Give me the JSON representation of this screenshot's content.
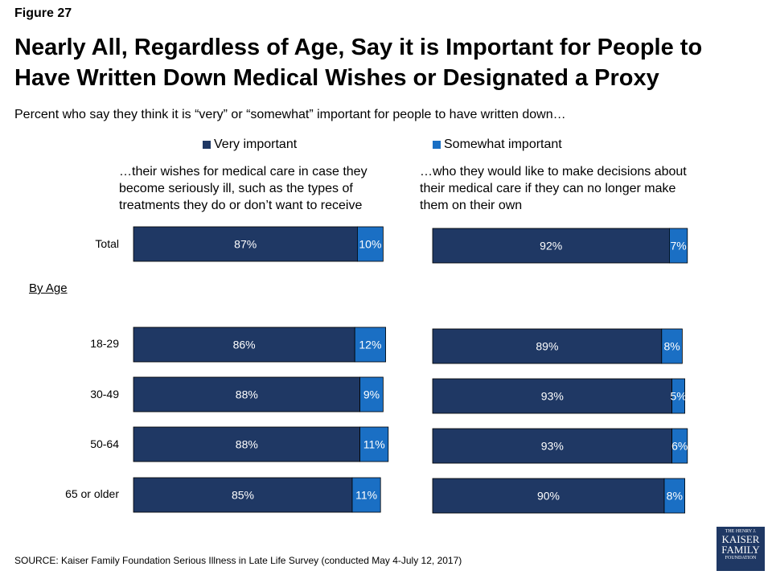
{
  "figure_label": "Figure 27",
  "title_lines": [
    "Nearly All, Regardless of Age, Say it is Important for People to",
    "Have Written Down Medical Wishes or Designated a Proxy"
  ],
  "subtitle": "Percent who say they think it is “very” or “somewhat” important for people to have written down…",
  "by_age_label": "By Age",
  "source": "SOURCE: Kaiser Family Foundation Serious Illness in Late Life Survey (conducted May 4-July 12, 2017)",
  "logo": {
    "line1": "THE HENRY J.",
    "line2": "KAISER",
    "line3": "FAMILY",
    "line4": "FOUNDATION"
  },
  "colors": {
    "very": "#1f3864",
    "somewhat": "#1a6fc4"
  },
  "chart_data": {
    "type": "bar",
    "orientation": "horizontal",
    "stacked": true,
    "categories": [
      "Total",
      "18-29",
      "30-49",
      "50-64",
      "65 or older"
    ],
    "legend": [
      "Very important",
      "Somewhat important"
    ],
    "legend_placement": "top",
    "panels": [
      {
        "title_lines": [
          "…their wishes for medical care in case they",
          "become seriously ill, such as the types of",
          "treatments they do or don’t want to receive"
        ],
        "series": [
          {
            "name": "Very important",
            "values": [
              87,
              86,
              88,
              88,
              85
            ]
          },
          {
            "name": "Somewhat important",
            "values": [
              10,
              12,
              9,
              11,
              11
            ]
          }
        ]
      },
      {
        "title_lines": [
          "…who they would like to make decisions about",
          "their medical care if they can no longer make",
          "them on their own"
        ],
        "series": [
          {
            "name": "Very important",
            "values": [
              92,
              89,
              93,
              93,
              90
            ]
          },
          {
            "name": "Somewhat important",
            "values": [
              7,
              8,
              5,
              6,
              8
            ]
          }
        ]
      }
    ],
    "xlim": [
      0,
      100
    ],
    "grid": false
  }
}
